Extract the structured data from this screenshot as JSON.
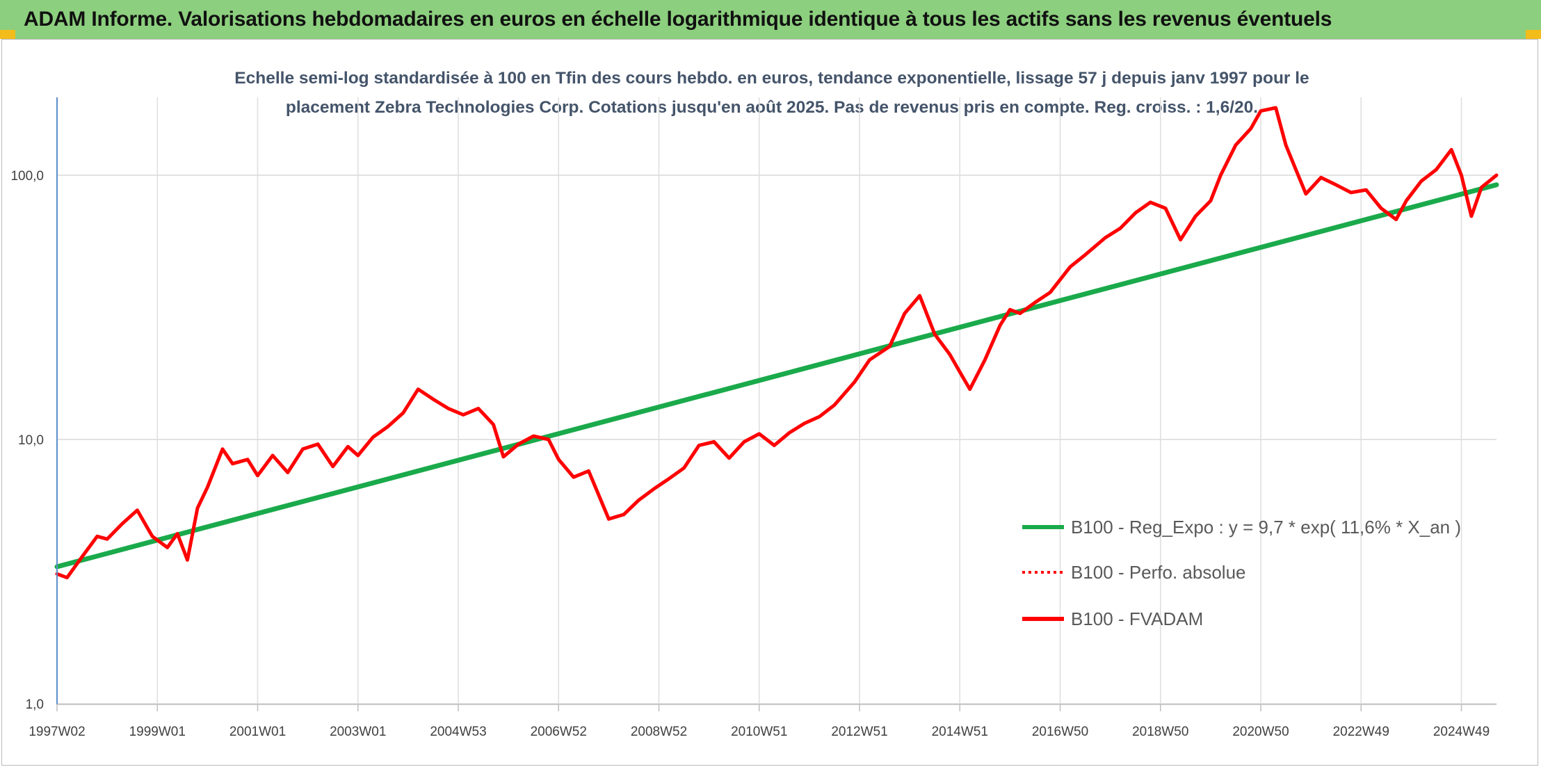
{
  "header": {
    "title": "ADAM Informe. Valorisations hebdomadaires en euros en échelle logarithmique identique à tous les actifs sans les revenus éventuels"
  },
  "colors": {
    "header_bg": "#8ccf7e",
    "accent_corner": "#f2bc1b",
    "title_text": "#44546a",
    "regression": "#1aaa4b",
    "fvadam": "#ff0000",
    "perfo": "#ff0000"
  },
  "chart_data": {
    "type": "line",
    "title_lines": [
      "Echelle semi-log standardisée à 100 en Tfin des cours hebdo. en euros, tendance exponentielle, lissage 57 j depuis janv 1997 pour le",
      "placement Zebra Technologies Corp. Cotations jusqu'en août 2025. Pas de revenus pris en compte. Reg. croiss. : 1,6/20."
    ],
    "y_scale": "log",
    "ylim": [
      1,
      200
    ],
    "y_ticks": [
      1,
      10,
      100
    ],
    "y_tick_labels": [
      "1,0",
      "10,0",
      "100,0"
    ],
    "x_ticks": [
      1997.0,
      1999.0,
      2001.0,
      2003.0,
      2005.0,
      2007.0,
      2009.0,
      2011.0,
      2013.0,
      2015.0,
      2017.0,
      2019.0,
      2021.0,
      2023.0,
      2025.0
    ],
    "x_tick_labels": [
      "1997W02",
      "1999W01",
      "2001W01",
      "2003W01",
      "2004W53",
      "2006W52",
      "2008W52",
      "2010W51",
      "2012W51",
      "2014W51",
      "2016W50",
      "2018W50",
      "2020W50",
      "2022W49",
      "2024W49"
    ],
    "xlim": [
      1997.0,
      2025.7
    ],
    "grid": {
      "horizontal": true,
      "vertical": true
    },
    "legend_position": "right",
    "series": [
      {
        "name": "B100 - Reg_Expo : y = 9,7 * exp( 11,6% *  X_an )",
        "style": "solid",
        "color": "#1aaa4b",
        "x": [
          1997.0,
          2025.7
        ],
        "y": [
          3.3,
          92
        ]
      },
      {
        "name": "B100 - Perfo. absolue",
        "style": "dotted",
        "color": "#ff0000",
        "x": [],
        "y": []
      },
      {
        "name": "B100 - FVADAM",
        "style": "solid",
        "color": "#ff0000",
        "x": [
          1997.0,
          1997.2,
          1997.5,
          1997.8,
          1998.0,
          1998.3,
          1998.6,
          1998.9,
          1999.2,
          1999.4,
          1999.6,
          1999.8,
          2000.0,
          2000.3,
          2000.5,
          2000.8,
          2001.0,
          2001.3,
          2001.6,
          2001.9,
          2002.2,
          2002.5,
          2002.8,
          2003.0,
          2003.3,
          2003.6,
          2003.9,
          2004.2,
          2004.5,
          2004.8,
          2005.1,
          2005.4,
          2005.7,
          2005.9,
          2006.2,
          2006.5,
          2006.8,
          2007.0,
          2007.3,
          2007.6,
          2008.0,
          2008.3,
          2008.6,
          2008.9,
          2009.2,
          2009.5,
          2009.8,
          2010.1,
          2010.4,
          2010.7,
          2011.0,
          2011.3,
          2011.6,
          2011.9,
          2012.2,
          2012.5,
          2012.9,
          2013.2,
          2013.6,
          2013.9,
          2014.2,
          2014.5,
          2014.8,
          2015.0,
          2015.2,
          2015.5,
          2015.8,
          2016.0,
          2016.2,
          2016.5,
          2016.8,
          2017.2,
          2017.5,
          2017.9,
          2018.2,
          2018.5,
          2018.8,
          2019.1,
          2019.4,
          2019.7,
          2020.0,
          2020.2,
          2020.5,
          2020.8,
          2021.0,
          2021.3,
          2021.5,
          2021.7,
          2021.9,
          2022.2,
          2022.5,
          2022.8,
          2023.1,
          2023.4,
          2023.7,
          2023.9,
          2024.2,
          2024.5,
          2024.8,
          2025.0,
          2025.2,
          2025.4,
          2025.7
        ],
        "y": [
          3.1,
          3.0,
          3.6,
          4.3,
          4.2,
          4.8,
          5.4,
          4.3,
          3.9,
          4.4,
          3.5,
          5.5,
          6.6,
          9.2,
          8.1,
          8.4,
          7.3,
          8.7,
          7.5,
          9.2,
          9.6,
          7.9,
          9.4,
          8.7,
          10.2,
          11.2,
          12.6,
          15.5,
          14.2,
          13.1,
          12.4,
          13.1,
          11.4,
          8.6,
          9.6,
          10.3,
          10.0,
          8.4,
          7.2,
          7.6,
          5.0,
          5.2,
          5.9,
          6.5,
          7.1,
          7.8,
          9.5,
          9.8,
          8.5,
          9.8,
          10.5,
          9.5,
          10.6,
          11.5,
          12.2,
          13.5,
          16.5,
          20.0,
          22.5,
          30.0,
          35.0,
          25.0,
          21.0,
          18.0,
          15.5,
          20.0,
          27.0,
          31.0,
          30.0,
          33.0,
          36.0,
          45.0,
          50.0,
          58.0,
          63.0,
          72.0,
          79.0,
          75.0,
          57.0,
          70.0,
          80.0,
          100.0,
          130.0,
          150.0,
          175.0,
          180.0,
          130.0,
          105.0,
          85.0,
          98.0,
          92.0,
          86.0,
          88.0,
          75.0,
          68.0,
          80.0,
          95.0,
          105.0,
          125.0,
          100.0,
          70.0,
          90.0,
          100.0
        ]
      }
    ]
  }
}
